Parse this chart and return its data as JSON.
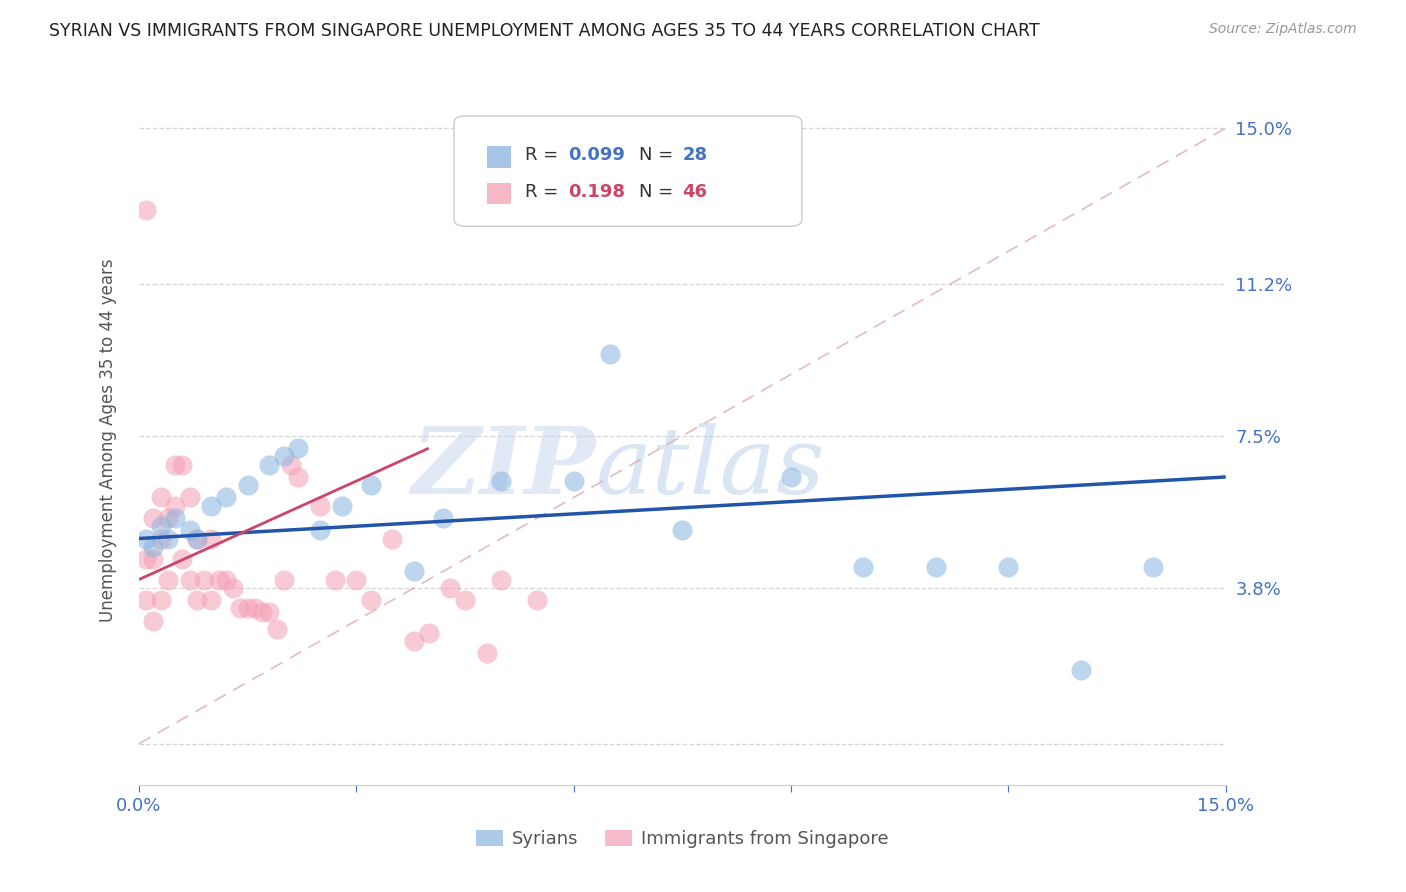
{
  "title": "SYRIAN VS IMMIGRANTS FROM SINGAPORE UNEMPLOYMENT AMONG AGES 35 TO 44 YEARS CORRELATION CHART",
  "source": "Source: ZipAtlas.com",
  "ylabel": "Unemployment Among Ages 35 to 44 years",
  "xlim": [
    0.0,
    0.15
  ],
  "ylim": [
    -0.01,
    0.158
  ],
  "ytick_values": [
    0.0,
    0.038,
    0.075,
    0.112,
    0.15
  ],
  "ytick_labels": [
    "",
    "3.8%",
    "7.5%",
    "11.2%",
    "15.0%"
  ],
  "xtick_values": [
    0.0,
    0.03,
    0.06,
    0.09,
    0.12,
    0.15
  ],
  "xtick_labels": [
    "0.0%",
    "",
    "",
    "",
    "",
    "15.0%"
  ],
  "syrians_R": "0.099",
  "syrians_N": "28",
  "singapore_R": "0.198",
  "singapore_N": "46",
  "color_syrian": "#8ab4e0",
  "color_singapore": "#f4a0b5",
  "color_syrian_line": "#2255aa",
  "color_singapore_line": "#cc4466",
  "color_diagonal": "#e0b0b8",
  "syrians_x": [
    0.001,
    0.002,
    0.003,
    0.004,
    0.005,
    0.007,
    0.008,
    0.01,
    0.012,
    0.015,
    0.018,
    0.02,
    0.022,
    0.025,
    0.028,
    0.032,
    0.038,
    0.042,
    0.05,
    0.06,
    0.065,
    0.075,
    0.09,
    0.1,
    0.11,
    0.12,
    0.13,
    0.14
  ],
  "syrians_y": [
    0.05,
    0.048,
    0.053,
    0.05,
    0.055,
    0.052,
    0.05,
    0.058,
    0.06,
    0.063,
    0.068,
    0.07,
    0.072,
    0.052,
    0.058,
    0.063,
    0.042,
    0.055,
    0.064,
    0.064,
    0.095,
    0.052,
    0.065,
    0.043,
    0.043,
    0.043,
    0.018,
    0.043
  ],
  "singapore_x": [
    0.001,
    0.001,
    0.001,
    0.002,
    0.002,
    0.002,
    0.003,
    0.003,
    0.003,
    0.004,
    0.004,
    0.005,
    0.005,
    0.006,
    0.006,
    0.007,
    0.007,
    0.008,
    0.008,
    0.009,
    0.01,
    0.01,
    0.011,
    0.012,
    0.013,
    0.014,
    0.015,
    0.016,
    0.017,
    0.018,
    0.019,
    0.02,
    0.021,
    0.022,
    0.025,
    0.027,
    0.03,
    0.032,
    0.035,
    0.038,
    0.04,
    0.043,
    0.045,
    0.048,
    0.05,
    0.055
  ],
  "singapore_y": [
    0.13,
    0.045,
    0.035,
    0.055,
    0.045,
    0.03,
    0.06,
    0.05,
    0.035,
    0.055,
    0.04,
    0.068,
    0.058,
    0.068,
    0.045,
    0.06,
    0.04,
    0.05,
    0.035,
    0.04,
    0.05,
    0.035,
    0.04,
    0.04,
    0.038,
    0.033,
    0.033,
    0.033,
    0.032,
    0.032,
    0.028,
    0.04,
    0.068,
    0.065,
    0.058,
    0.04,
    0.04,
    0.035,
    0.05,
    0.025,
    0.027,
    0.038,
    0.035,
    0.022,
    0.04,
    0.035
  ],
  "watermark_zip": "ZIP",
  "watermark_atlas": "atlas",
  "background_color": "#ffffff",
  "grid_color": "#cccccc"
}
